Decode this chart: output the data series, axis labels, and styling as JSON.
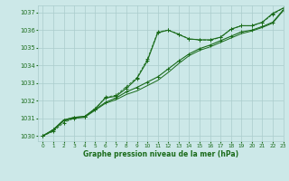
{
  "title": "Graphe pression niveau de la mer (hPa)",
  "bg_color": "#cce8e8",
  "grid_color": "#aacccc",
  "line_color": "#1a6b1a",
  "xlim": [
    -0.5,
    23
  ],
  "ylim": [
    1029.7,
    1037.4
  ],
  "yticks": [
    1030,
    1031,
    1032,
    1033,
    1034,
    1035,
    1036,
    1037
  ],
  "xticks": [
    0,
    1,
    2,
    3,
    4,
    5,
    6,
    7,
    8,
    9,
    10,
    11,
    12,
    13,
    14,
    15,
    16,
    17,
    18,
    19,
    20,
    21,
    22,
    23
  ],
  "series": [
    {
      "y": [
        1030.0,
        1030.35,
        1030.9,
        1031.05,
        1031.1,
        1031.55,
        1032.15,
        1032.25,
        1032.7,
        1033.25,
        1034.25,
        1035.85,
        1036.0,
        1035.75,
        1035.5,
        1035.45,
        1035.45,
        1035.6,
        1036.05,
        1036.25,
        1036.25,
        1036.45,
        1036.95,
        1037.25
      ],
      "linestyle": "-",
      "marker": true,
      "lw": 0.8
    },
    {
      "y": [
        1030.0,
        1030.35,
        1030.9,
        1031.05,
        1031.1,
        1031.5,
        1031.9,
        1032.15,
        1032.5,
        1032.75,
        1033.05,
        1033.35,
        1033.8,
        1034.25,
        1034.65,
        1034.95,
        1035.15,
        1035.4,
        1035.65,
        1035.9,
        1036.0,
        1036.2,
        1036.45,
        1037.15
      ],
      "linestyle": "-",
      "marker": true,
      "lw": 0.8
    },
    {
      "y": [
        1030.0,
        1030.3,
        1030.85,
        1031.0,
        1031.05,
        1031.45,
        1031.85,
        1032.05,
        1032.35,
        1032.55,
        1032.85,
        1033.15,
        1033.6,
        1034.1,
        1034.55,
        1034.85,
        1035.05,
        1035.3,
        1035.55,
        1035.8,
        1035.95,
        1036.15,
        1036.4,
        1037.1
      ],
      "linestyle": "-",
      "marker": false,
      "lw": 0.7
    },
    {
      "y": [
        1030.0,
        1030.25,
        1030.75,
        1031.0,
        1031.1,
        1031.5,
        1032.2,
        1032.3,
        1032.8,
        1033.3,
        1034.35,
        1035.9,
        1036.0,
        1035.78,
        1035.5,
        1035.45,
        1035.43,
        1035.58,
        1036.05,
        1036.25,
        1036.25,
        1036.43,
        1036.9,
        1037.25
      ],
      "linestyle": "--",
      "marker": true,
      "lw": 0.6
    }
  ]
}
